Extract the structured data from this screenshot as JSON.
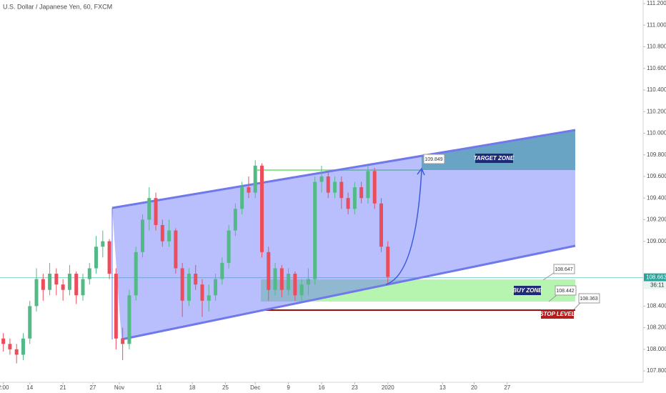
{
  "chart_data": {
    "type": "candlestick",
    "title": "U.S. Dollar / Japanese Yen, 60, FXCM",
    "up_color": "#53b987",
    "down_color": "#eb4d5c",
    "x": [
      -0.8,
      -0.6,
      -0.4,
      -0.2,
      0,
      0.2,
      0.4,
      0.6,
      0.8,
      1,
      1.2,
      1.4,
      1.6,
      1.8,
      2,
      2.2,
      2.4,
      2.6,
      2.8,
      3,
      3.2,
      3.4,
      3.6,
      3.8,
      4,
      4.2,
      4.4,
      4.6,
      4.8,
      5,
      5.2,
      5.4,
      5.6,
      5.8,
      6,
      6.2,
      6.4,
      6.6,
      6.8,
      7,
      7.2,
      7.4,
      7.6,
      7.8,
      8,
      8.2,
      8.4,
      8.6,
      8.8,
      9,
      9.2,
      9.4,
      9.6,
      9.8,
      10,
      10.2,
      10.4,
      10.6,
      10.8
    ],
    "ohlc": [
      [
        108.1,
        108.15,
        107.98,
        108.05
      ],
      [
        108.05,
        108.1,
        107.95,
        108.0
      ],
      [
        108.0,
        108.05,
        107.87,
        107.95
      ],
      [
        107.95,
        108.15,
        107.9,
        108.1
      ],
      [
        108.1,
        108.45,
        108.05,
        108.4
      ],
      [
        108.4,
        108.75,
        108.35,
        108.65
      ],
      [
        108.65,
        108.7,
        108.45,
        108.55
      ],
      [
        108.55,
        108.8,
        108.5,
        108.7
      ],
      [
        108.7,
        108.75,
        108.5,
        108.6
      ],
      [
        108.6,
        108.65,
        108.45,
        108.55
      ],
      [
        108.55,
        108.78,
        108.5,
        108.7
      ],
      [
        108.7,
        108.72,
        108.42,
        108.5
      ],
      [
        108.5,
        108.7,
        108.45,
        108.65
      ],
      [
        108.65,
        108.8,
        108.6,
        108.75
      ],
      [
        108.75,
        109.05,
        108.7,
        108.95
      ],
      [
        108.95,
        109.1,
        108.85,
        109.0
      ],
      [
        109.0,
        109.02,
        108.65,
        108.7
      ],
      [
        108.7,
        108.75,
        108.0,
        108.1
      ],
      [
        108.1,
        108.2,
        107.9,
        108.05
      ],
      [
        108.05,
        108.55,
        108.0,
        108.5
      ],
      [
        108.5,
        108.95,
        108.45,
        108.9
      ],
      [
        108.9,
        109.25,
        108.85,
        109.2
      ],
      [
        109.2,
        109.5,
        109.1,
        109.4
      ],
      [
        109.4,
        109.45,
        109.1,
        109.15
      ],
      [
        109.15,
        109.2,
        108.95,
        109.0
      ],
      [
        109.0,
        109.2,
        108.95,
        109.1
      ],
      [
        109.1,
        109.12,
        108.7,
        108.75
      ],
      [
        108.75,
        108.8,
        108.3,
        108.45
      ],
      [
        108.45,
        108.75,
        108.4,
        108.7
      ],
      [
        108.7,
        108.78,
        108.55,
        108.6
      ],
      [
        108.6,
        108.65,
        108.3,
        108.45
      ],
      [
        108.45,
        108.6,
        108.35,
        108.5
      ],
      [
        108.5,
        108.7,
        108.45,
        108.65
      ],
      [
        108.65,
        108.85,
        108.6,
        108.8
      ],
      [
        108.8,
        109.15,
        108.75,
        109.1
      ],
      [
        109.1,
        109.35,
        109.05,
        109.3
      ],
      [
        109.3,
        109.55,
        109.25,
        109.5
      ],
      [
        109.5,
        109.6,
        109.4,
        109.45
      ],
      [
        109.45,
        109.75,
        109.4,
        109.7
      ],
      [
        109.7,
        109.72,
        108.85,
        108.9
      ],
      [
        108.9,
        108.95,
        108.45,
        108.55
      ],
      [
        108.55,
        108.8,
        108.5,
        108.75
      ],
      [
        108.75,
        108.78,
        108.48,
        108.55
      ],
      [
        108.55,
        108.75,
        108.5,
        108.7
      ],
      [
        108.7,
        108.72,
        108.45,
        108.5
      ],
      [
        108.5,
        108.65,
        108.45,
        108.6
      ],
      [
        108.6,
        108.75,
        108.5,
        108.65
      ],
      [
        108.65,
        109.6,
        108.6,
        109.55
      ],
      [
        109.55,
        109.7,
        109.45,
        109.6
      ],
      [
        109.6,
        109.65,
        109.4,
        109.45
      ],
      [
        109.45,
        109.6,
        109.4,
        109.55
      ],
      [
        109.55,
        109.6,
        109.3,
        109.4
      ],
      [
        109.4,
        109.45,
        109.25,
        109.3
      ],
      [
        109.3,
        109.55,
        109.25,
        109.5
      ],
      [
        109.5,
        109.55,
        109.35,
        109.4
      ],
      [
        109.4,
        109.7,
        109.35,
        109.65
      ],
      [
        109.65,
        109.68,
        109.3,
        109.35
      ],
      [
        109.35,
        109.4,
        108.9,
        108.95
      ],
      [
        108.95,
        109.0,
        108.6,
        108.67
      ]
    ],
    "xlim": [
      -0.9,
      18.5
    ],
    "ylim": [
      107.695,
      111.233
    ],
    "xticks": [
      {
        "value": -0.8,
        "label": "2:00"
      },
      {
        "value": 0,
        "label": "14"
      },
      {
        "value": 1,
        "label": "21"
      },
      {
        "value": 1.9,
        "label": "27"
      },
      {
        "value": 2.7,
        "label": "Nov"
      },
      {
        "value": 3.9,
        "label": "11"
      },
      {
        "value": 4.9,
        "label": "18"
      },
      {
        "value": 5.9,
        "label": "25"
      },
      {
        "value": 6.8,
        "label": "Dec"
      },
      {
        "value": 7.8,
        "label": "9"
      },
      {
        "value": 8.8,
        "label": "16"
      },
      {
        "value": 9.8,
        "label": "23"
      },
      {
        "value": 10.8,
        "label": "2020"
      },
      {
        "value": 12.45,
        "label": "13"
      },
      {
        "value": 13.4,
        "label": "20"
      },
      {
        "value": 14.4,
        "label": "27"
      }
    ],
    "yticks": [
      {
        "value": 111.2,
        "label": "111.200"
      },
      {
        "value": 111.0,
        "label": "111.000"
      },
      {
        "value": 110.8,
        "label": "110.800"
      },
      {
        "value": 110.6,
        "label": "110.600"
      },
      {
        "value": 110.4,
        "label": "110.400"
      },
      {
        "value": 110.2,
        "label": "110.200"
      },
      {
        "value": 110.0,
        "label": "110.000"
      },
      {
        "value": 109.8,
        "label": "109.800"
      },
      {
        "value": 109.6,
        "label": "109.600"
      },
      {
        "value": 109.4,
        "label": "109.400"
      },
      {
        "value": 109.2,
        "label": "109.200"
      },
      {
        "value": 109.0,
        "label": "109.000"
      },
      {
        "value": 108.4,
        "label": "108.400"
      },
      {
        "value": 108.2,
        "label": "108.200"
      },
      {
        "value": 108.0,
        "label": "108.000"
      },
      {
        "value": 107.8,
        "label": "107.800"
      }
    ],
    "last_price": 108.663,
    "countdown": "36:11",
    "target_price": 109.849,
    "buy_zone_top": 108.647,
    "buy_zone_bottom": 108.442,
    "stop_price": 108.363,
    "target_label": "TARGET ZONE",
    "buy_label": "BUY ZONE",
    "stop_label": "STOP LEVEL"
  }
}
